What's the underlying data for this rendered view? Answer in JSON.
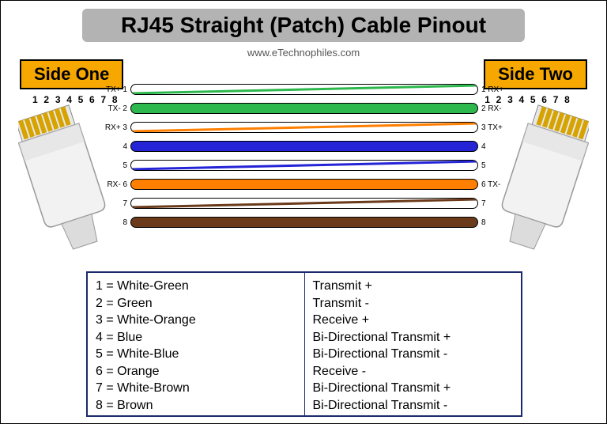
{
  "title": "RJ45 Straight (Patch) Cable Pinout",
  "subtitle": "www.eTechnophiles.com",
  "side_labels": {
    "left": "Side One",
    "right": "Side Two"
  },
  "pin_number_string": "1 2 3 4 5 6 7 8",
  "colors": {
    "green": "#2db84d",
    "orange": "#ff7f00",
    "blue": "#2424d6",
    "brown": "#6b3a1a",
    "header_bg": "#b3b3b3",
    "side_bg": "#f7a800",
    "border_navy": "#1a2a6c",
    "connector_body": "#e8e8e8",
    "connector_shade": "#cfcfcf",
    "gold": "#d6a300"
  },
  "wires": [
    {
      "pin": 1,
      "left_label": "TX+ 1",
      "right_label": "1 RX+",
      "style": "striped",
      "stripe_color": "#2db84d",
      "bg": "#ffffff"
    },
    {
      "pin": 2,
      "left_label": "TX- 2",
      "right_label": "2 RX-",
      "style": "solid",
      "bg": "#2db84d"
    },
    {
      "pin": 3,
      "left_label": "RX+ 3",
      "right_label": "3 TX+",
      "style": "striped",
      "stripe_color": "#ff7f00",
      "bg": "#ffffff"
    },
    {
      "pin": 4,
      "left_label": "4",
      "right_label": "4",
      "style": "solid",
      "bg": "#2424d6"
    },
    {
      "pin": 5,
      "left_label": "5",
      "right_label": "5",
      "style": "striped",
      "stripe_color": "#2424d6",
      "bg": "#ffffff"
    },
    {
      "pin": 6,
      "left_label": "RX- 6",
      "right_label": "6 TX-",
      "style": "solid",
      "bg": "#ff7f00"
    },
    {
      "pin": 7,
      "left_label": "7",
      "right_label": "7",
      "style": "striped",
      "stripe_color": "#6b3a1a",
      "bg": "#ffffff"
    },
    {
      "pin": 8,
      "left_label": "8",
      "right_label": "8",
      "style": "solid",
      "bg": "#6b3a1a"
    }
  ],
  "legend": {
    "col1": [
      "1 = White-Green",
      "2 = Green",
      "3 = White-Orange",
      "4 = Blue",
      "5 = White-Blue",
      "6 = Orange",
      "7 = White-Brown",
      "8 = Brown"
    ],
    "col2": [
      "Transmit +",
      "Transmit -",
      "Receive +",
      "Bi-Directional Transmit +",
      "Bi-Directional Transmit -",
      "Receive -",
      "Bi-Directional Transmit +",
      "Bi-Directional Transmit -"
    ]
  }
}
